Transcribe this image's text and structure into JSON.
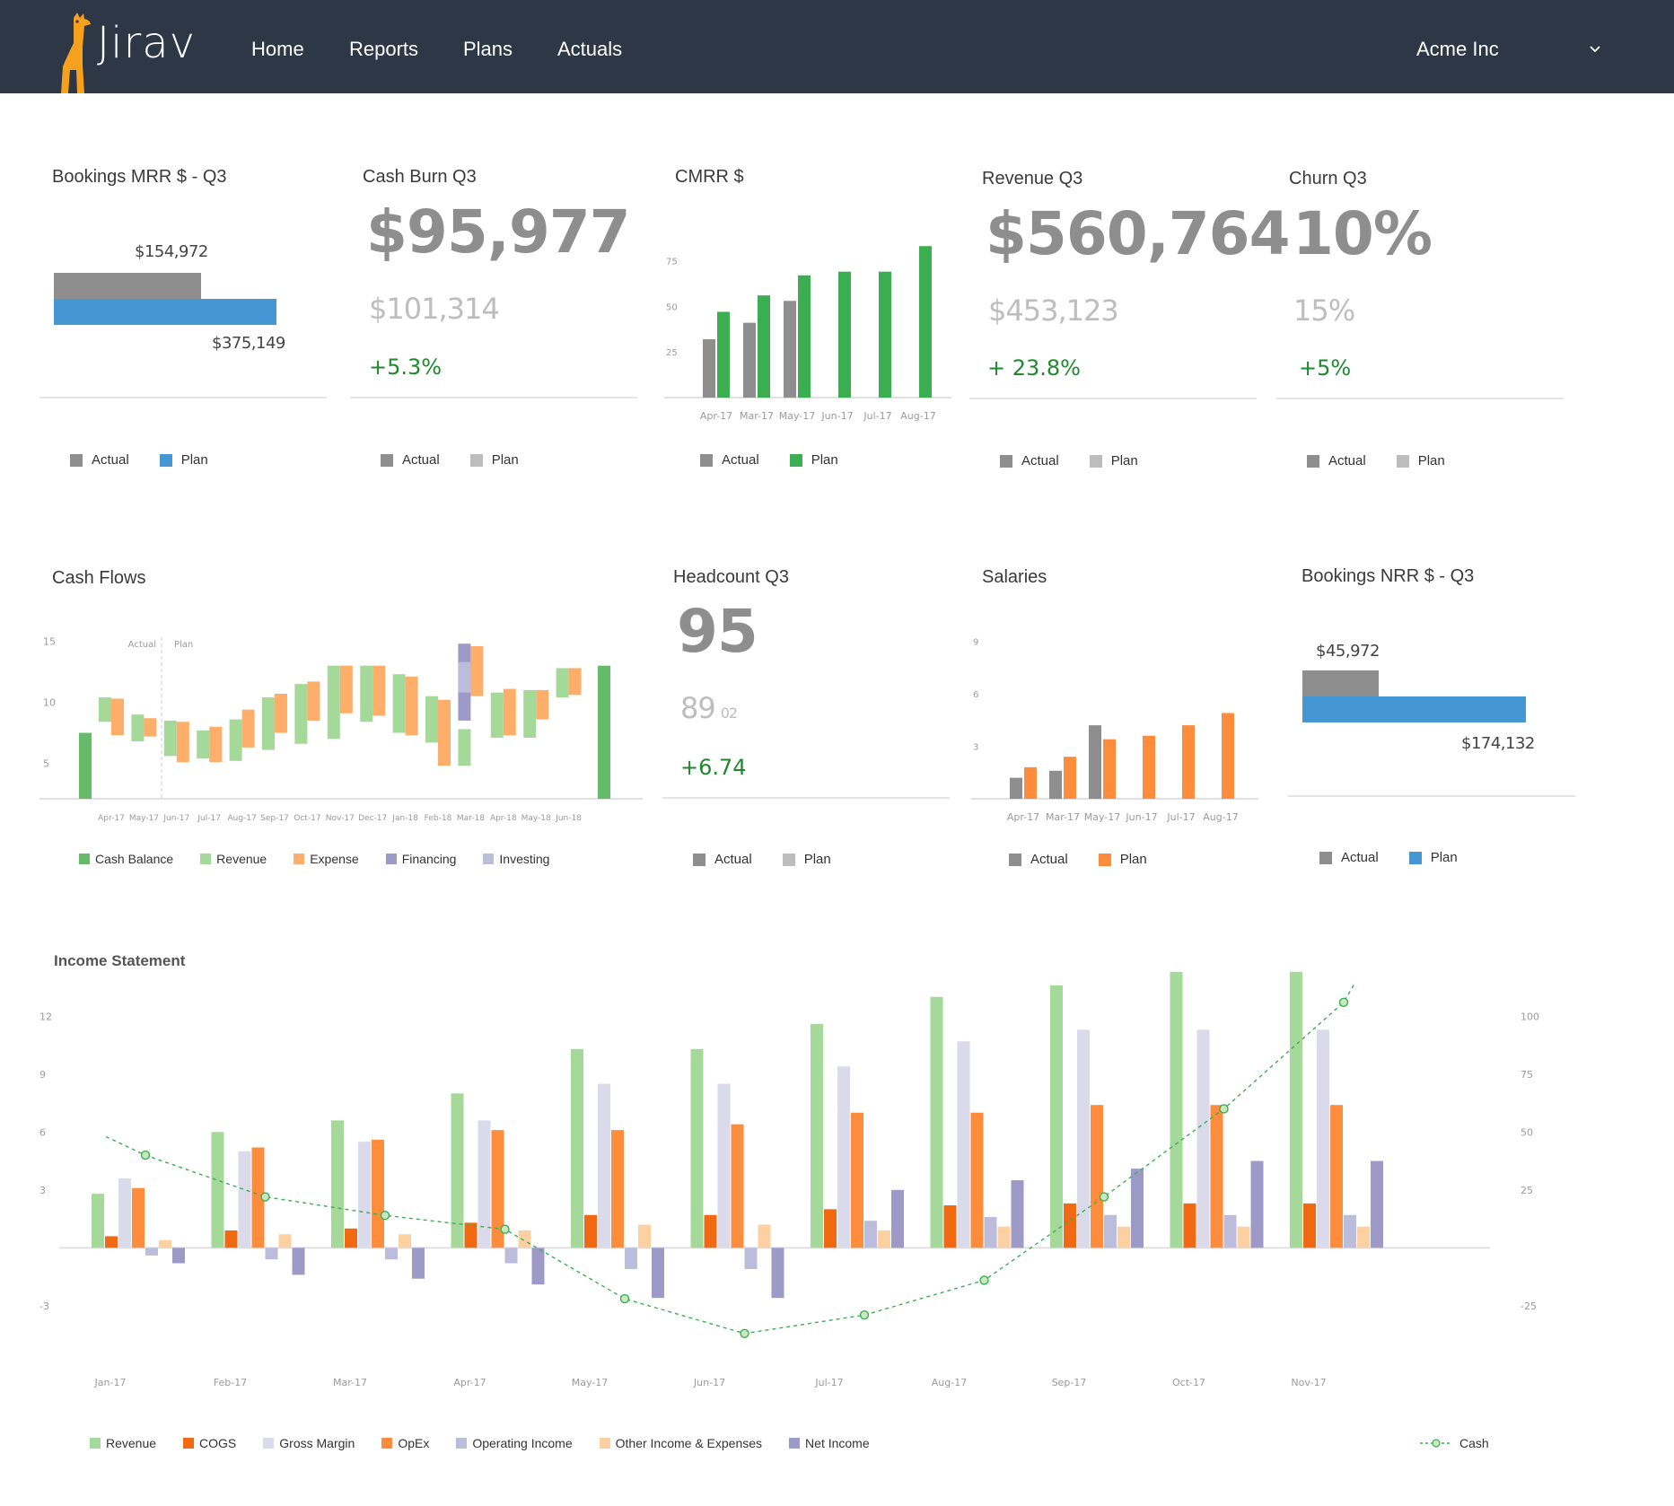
{
  "nav": {
    "logo_text": "Jirav",
    "links": [
      "Home",
      "Reports",
      "Plans",
      "Actuals"
    ],
    "company": "Acme Inc"
  },
  "colors": {
    "nav_bg": "#2d3746",
    "actual_gray": "#8e8e8e",
    "plan_blue": "#4497d3",
    "plan_green": "#3cae52",
    "plan_light": "#bdbdbd",
    "plan_orange": "#fd8c3c",
    "positive": "#1e8a2e"
  },
  "cards": {
    "bookings_mrr": {
      "title": "Bookings MRR $ - Q3",
      "actual_label": "$154,972",
      "plan_label": "$375,149",
      "actual_value": 154972,
      "plan_value": 375149,
      "legend": [
        "Actual",
        "Plan"
      ]
    },
    "cash_burn": {
      "title": "Cash Burn Q3",
      "value": "$95,977",
      "plan": "$101,314",
      "delta": "+5.3%",
      "legend": [
        "Actual",
        "Plan"
      ]
    },
    "cmrr": {
      "title": "CMRR $",
      "legend": [
        "Actual",
        "Plan"
      ]
    },
    "revenue": {
      "title": "Revenue Q3",
      "value": "$560,764",
      "plan": "$453,123",
      "delta": "+ 23.8%",
      "legend": [
        "Actual",
        "Plan"
      ]
    },
    "churn": {
      "title": "Churn Q3",
      "value": "10%",
      "plan": "15%",
      "delta": "+5%",
      "legend": [
        "Actual",
        "Plan"
      ]
    },
    "cash_flows": {
      "title": "Cash Flows",
      "legend": [
        "Cash Balance",
        "Revenue",
        "Expense",
        "Financing",
        "Investing"
      ]
    },
    "headcount": {
      "title": "Headcount Q3",
      "value": "95",
      "plan": "89",
      "plan_small": "02",
      "delta": "+6.74",
      "legend": [
        "Actual",
        "Plan"
      ]
    },
    "salaries": {
      "title": "Salaries",
      "legend": [
        "Actual",
        "Plan"
      ]
    },
    "bookings_nrr": {
      "title": "Bookings NRR $ - Q3",
      "actual_label": "$45,972",
      "plan_label": "$174,132",
      "actual_value": 45972,
      "plan_value": 174132,
      "legend": [
        "Actual",
        "Plan"
      ]
    },
    "income_statement": {
      "title": "Income Statement",
      "legend": [
        "Revenue",
        "COGS",
        "Gross Margin",
        "OpEx",
        "Operating Income",
        "Other Income & Expenses",
        "Net Income"
      ],
      "cash_legend": "Cash"
    }
  },
  "chart_data": [
    {
      "id": "cmrr",
      "type": "bar",
      "categories": [
        "Apr-17",
        "Mar-17",
        "May-17",
        "Jun-17",
        "Jul-17",
        "Aug-17"
      ],
      "series": [
        {
          "name": "Actual",
          "values": [
            32,
            41,
            53,
            null,
            null,
            null
          ]
        },
        {
          "name": "Plan",
          "values": [
            47,
            56,
            67,
            69,
            69,
            83
          ]
        }
      ],
      "yticks": [
        25,
        50,
        75
      ],
      "ylim": [
        0,
        90
      ]
    },
    {
      "id": "salaries",
      "type": "bar",
      "categories": [
        "Apr-17",
        "Mar-17",
        "May-17",
        "Jun-17",
        "Jul-17",
        "Aug-17"
      ],
      "series": [
        {
          "name": "Actual",
          "values": [
            1.2,
            1.6,
            4.2,
            null,
            null,
            null
          ]
        },
        {
          "name": "Plan",
          "values": [
            1.8,
            2.4,
            3.4,
            3.6,
            4.2,
            4.9
          ]
        }
      ],
      "yticks": [
        3,
        6,
        9
      ],
      "ylim": [
        0,
        10
      ]
    },
    {
      "id": "cash_flows",
      "type": "bar",
      "categories": [
        "Apr-17",
        "May-17",
        "Jun-17",
        "Jul-17",
        "Aug-17",
        "Sep-17",
        "Oct-17",
        "Nov-17",
        "Dec-17",
        "Jan-18",
        "Feb-18",
        "Mar-18",
        "Apr-18",
        "May-18",
        "Jun-18"
      ],
      "annotations": [
        "Actual",
        "Plan"
      ],
      "yticks": [
        5,
        10,
        15
      ],
      "ylim": [
        2.1,
        16.8
      ],
      "cash_balance_start": 7.5,
      "cash_balance_end": 13,
      "series": [
        {
          "name": "Revenue",
          "values": [
            [
              8.4,
              10.4
            ],
            [
              6.8,
              9
            ],
            [
              5.6,
              8.5
            ],
            [
              5.4,
              7.7
            ],
            [
              5.2,
              8.6
            ],
            [
              6.1,
              10.4
            ],
            [
              6.6,
              11.5
            ],
            [
              7,
              13
            ],
            [
              8.4,
              13
            ],
            [
              7.5,
              12.3
            ],
            [
              6.7,
              10.5
            ],
            [
              4.8,
              7.8
            ],
            [
              7.1,
              10.8
            ],
            [
              7.1,
              11
            ],
            [
              10.4,
              12.8
            ]
          ]
        },
        {
          "name": "Expense",
          "values": [
            [
              7.3,
              10.3
            ],
            [
              7.2,
              8.7
            ],
            [
              5.1,
              8.4
            ],
            [
              5.1,
              8
            ],
            [
              6.3,
              9.4
            ],
            [
              7.5,
              10.7
            ],
            [
              8.5,
              11.7
            ],
            [
              9.1,
              13
            ],
            [
              8.9,
              13
            ],
            [
              7.3,
              12.1
            ],
            [
              4.8,
              10.2
            ],
            [
              10.5,
              14.6
            ],
            [
              7.3,
              11.1
            ],
            [
              8.6,
              11
            ],
            [
              10.6,
              12.8
            ]
          ]
        },
        {
          "name": "Financing",
          "values": [
            null,
            null,
            null,
            null,
            null,
            null,
            null,
            null,
            null,
            null,
            null,
            [
              8.5,
              14.8
            ],
            null,
            null,
            null
          ]
        },
        {
          "name": "Investing",
          "values": [
            null,
            null,
            null,
            null,
            null,
            null,
            null,
            null,
            null,
            null,
            null,
            [
              10.8,
              13.3
            ],
            null,
            null,
            null
          ]
        }
      ]
    },
    {
      "id": "income_statement",
      "type": "bar",
      "categories": [
        "Jan-17",
        "Feb-17",
        "Mar-17",
        "Apr-17",
        "May-17",
        "Jun-17",
        "Jul-17",
        "Aug-17",
        "Sep-17",
        "Oct-17",
        "Nov-17"
      ],
      "yticks": [
        -3,
        3,
        6,
        9,
        12
      ],
      "yticks_right": [
        -25,
        25,
        50,
        75,
        100
      ],
      "ylim": [
        -5.1,
        13.5
      ],
      "series": [
        {
          "name": "Revenue",
          "values": [
            2.8,
            6,
            6.6,
            8,
            10.3,
            10.3,
            11.6,
            13,
            13.6,
            14.3,
            14.3
          ]
        },
        {
          "name": "COGS",
          "values": [
            0.6,
            0.9,
            1,
            1.3,
            1.7,
            1.7,
            2,
            2.2,
            2.3,
            2.3,
            2.3
          ]
        },
        {
          "name": "Gross Margin",
          "values": [
            3.6,
            5,
            5.5,
            6.6,
            8.5,
            8.5,
            9.4,
            10.7,
            11.3,
            11.3,
            11.3
          ]
        },
        {
          "name": "OpEx",
          "values": [
            3.1,
            5.2,
            5.6,
            6.1,
            6.1,
            6.4,
            7,
            7,
            7.4,
            7.4,
            7.4
          ]
        },
        {
          "name": "Operating Income",
          "values": [
            -0.4,
            -0.6,
            -0.6,
            -0.8,
            -1.1,
            -1.1,
            1.4,
            1.6,
            1.7,
            1.7,
            1.7
          ]
        },
        {
          "name": "Other Income & Expenses",
          "values": [
            0.4,
            0.7,
            0.7,
            0.9,
            1.2,
            1.2,
            0.9,
            1.1,
            1.1,
            1.1,
            1.1
          ]
        },
        {
          "name": "Net Income",
          "values": [
            -0.8,
            -1.4,
            -1.6,
            -1.9,
            -2.6,
            -2.6,
            3,
            3.5,
            4.1,
            4.5,
            4.5
          ]
        }
      ],
      "cash": {
        "name": "Cash",
        "values": [
          40,
          22,
          14,
          8,
          -22,
          -37,
          -29,
          -14,
          22,
          60,
          106
        ]
      }
    }
  ]
}
